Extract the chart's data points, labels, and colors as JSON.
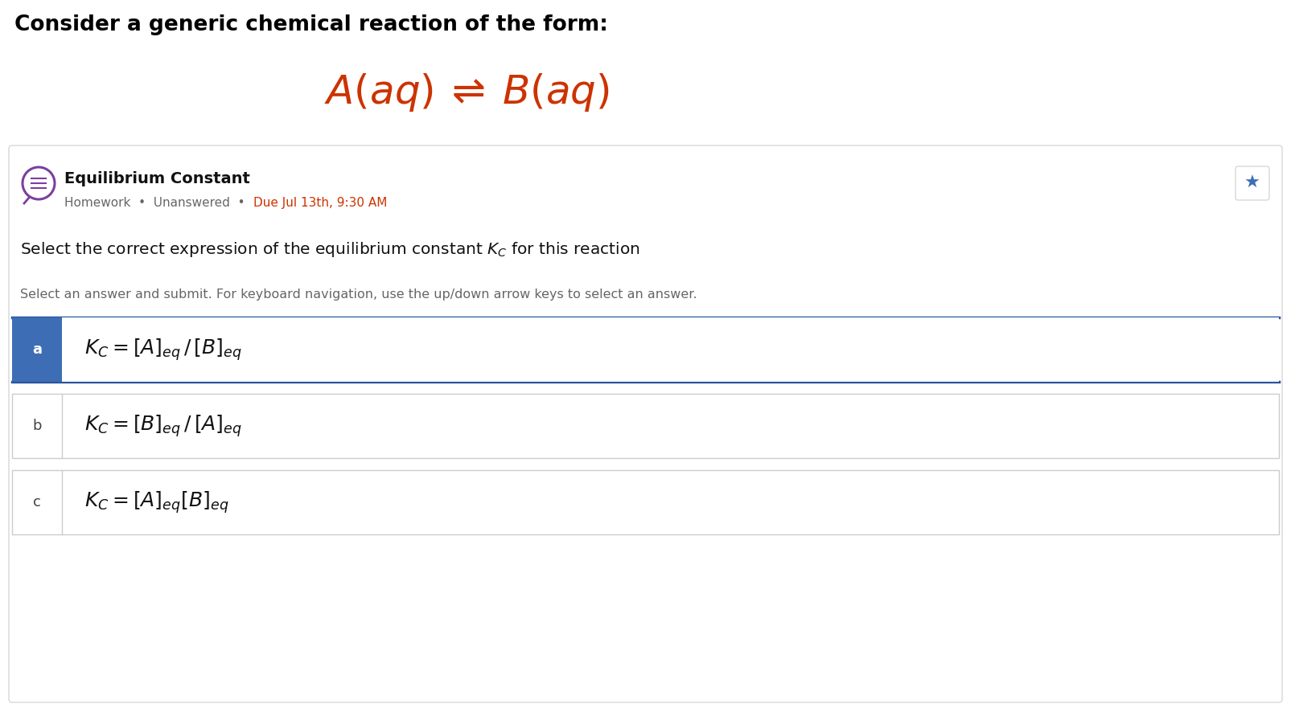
{
  "title": "Consider a generic chemical reaction of the form:",
  "title_color": "#000000",
  "title_fontsize": 19,
  "background_color": "#ffffff",
  "panel_bg": "#ffffff",
  "panel_border": "#d8d8d8",
  "section_title": "Equilibrium Constant",
  "due_date_color": "#cc3300",
  "question_text": "Select the correct expression of the equilibrium constant $K_C$ for this reaction",
  "instruction_text": "Select an answer and submit. For keyboard navigation, use the up/down arrow keys to select an answer.",
  "selected_bg": "#3d6db5",
  "selected_label_color": "#ffffff",
  "unselected_bg": "#ffffff",
  "unselected_label_color": "#444444",
  "option_border": "#cccccc",
  "selected_border": "#2a55a0",
  "icon_color": "#7b3fa0",
  "star_color": "#3d6db5",
  "reaction_color": "#cc3300",
  "option_a_formula": "$K_C = [A]_{eq}\\,/\\,[B]_{eq}$",
  "option_b_formula": "$K_C = [B]_{eq}\\,/\\,[A]_{eq}$",
  "option_c_formula": "$K_C = [A]_{eq}[B]_{eq}$",
  "fig_width": 16.05,
  "fig_height": 8.86,
  "dpi": 100
}
